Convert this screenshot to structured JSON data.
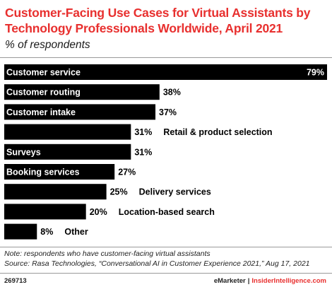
{
  "chart_data": {
    "type": "bar",
    "orientation": "horizontal",
    "title": "Customer-Facing Use Cases for Virtual Assistants by Technology Professionals Worldwide, April 2021",
    "subtitle": "% of respondents",
    "categories": [
      "Customer service",
      "Customer routing",
      "Customer intake",
      "Retail & product selection",
      "Surveys",
      "Booking services",
      "Delivery services",
      "Location-based search",
      "Other"
    ],
    "values": [
      79,
      38,
      37,
      31,
      31,
      27,
      25,
      20,
      8
    ],
    "value_labels": [
      "79%",
      "38%",
      "37%",
      "31%",
      "31%",
      "27%",
      "25%",
      "20%",
      "8%"
    ],
    "xlim": [
      0,
      79
    ],
    "bar_color": "#000000",
    "label_color_inside": "#ffffff",
    "label_color_outside": "#000000"
  },
  "footnote": {
    "note": "Note: respondents who have customer-facing virtual assistants",
    "source": "Source: Rasa Technologies, “Conversational AI in Customer Experience 2021,” Aug 17, 2021"
  },
  "footer": {
    "chart_id": "269713",
    "brand": "eMarketer",
    "separator": "|",
    "site": "InsiderIntelligence.com"
  },
  "colors": {
    "title": "#e8302f",
    "rule": "#9a9a9a"
  }
}
